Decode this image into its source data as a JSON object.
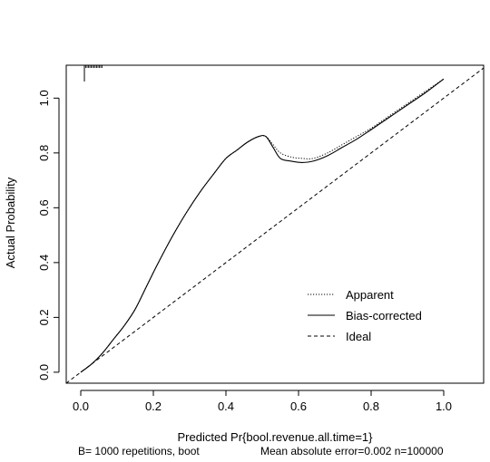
{
  "chart_data": {
    "type": "line",
    "title": "",
    "xlabel": "Predicted Pr{bool.revenue.all.time=1}",
    "ylabel": "Actual Probability",
    "xlim": [
      -0.04,
      1.11
    ],
    "ylim": [
      -0.04,
      1.12
    ],
    "xticks": [
      0.0,
      0.2,
      0.4,
      0.6,
      0.8,
      1.0
    ],
    "yticks": [
      0.0,
      0.2,
      0.4,
      0.6,
      0.8,
      1.0
    ],
    "xtick_labels": [
      "0.0",
      "0.2",
      "0.4",
      "0.6",
      "0.8",
      "1.0"
    ],
    "ytick_labels": [
      "0.0",
      "0.2",
      "0.4",
      "0.6",
      "0.8",
      "1.0"
    ],
    "grid": false,
    "legend_position": "bottom-right",
    "series": [
      {
        "name": "Apparent",
        "style": "dotted",
        "x": [
          0.0,
          0.03,
          0.06,
          0.09,
          0.12,
          0.15,
          0.18,
          0.21,
          0.25,
          0.29,
          0.33,
          0.37,
          0.4,
          0.43,
          0.46,
          0.49,
          0.51,
          0.53,
          0.55,
          0.58,
          0.61,
          0.64,
          0.68,
          0.72,
          0.76,
          0.8,
          0.85,
          0.9,
          0.95,
          1.0
        ],
        "y": [
          0.0,
          0.03,
          0.07,
          0.12,
          0.17,
          0.23,
          0.31,
          0.39,
          0.49,
          0.58,
          0.66,
          0.73,
          0.78,
          0.81,
          0.84,
          0.86,
          0.86,
          0.83,
          0.8,
          0.785,
          0.78,
          0.78,
          0.8,
          0.83,
          0.86,
          0.89,
          0.935,
          0.98,
          1.025,
          1.07
        ]
      },
      {
        "name": "Bias-corrected",
        "style": "solid",
        "x": [
          0.0,
          0.03,
          0.06,
          0.09,
          0.12,
          0.15,
          0.18,
          0.21,
          0.25,
          0.29,
          0.33,
          0.37,
          0.4,
          0.43,
          0.46,
          0.49,
          0.51,
          0.53,
          0.55,
          0.58,
          0.61,
          0.64,
          0.68,
          0.72,
          0.76,
          0.8,
          0.85,
          0.9,
          0.95,
          1.0
        ],
        "y": [
          0.0,
          0.03,
          0.07,
          0.12,
          0.17,
          0.23,
          0.31,
          0.39,
          0.49,
          0.58,
          0.66,
          0.73,
          0.78,
          0.81,
          0.84,
          0.86,
          0.86,
          0.82,
          0.78,
          0.77,
          0.765,
          0.77,
          0.79,
          0.82,
          0.85,
          0.885,
          0.93,
          0.975,
          1.02,
          1.07
        ]
      },
      {
        "name": "Ideal",
        "style": "dashed",
        "x": [
          -0.04,
          1.11
        ],
        "y": [
          -0.04,
          1.11
        ]
      }
    ],
    "rug": {
      "x_from": 0.01,
      "x_to": 0.06,
      "tall_x": 0.01
    },
    "footer": {
      "left": "B= 1000 repetitions, boot",
      "right": "Mean absolute error=0.002 n=100000"
    }
  }
}
